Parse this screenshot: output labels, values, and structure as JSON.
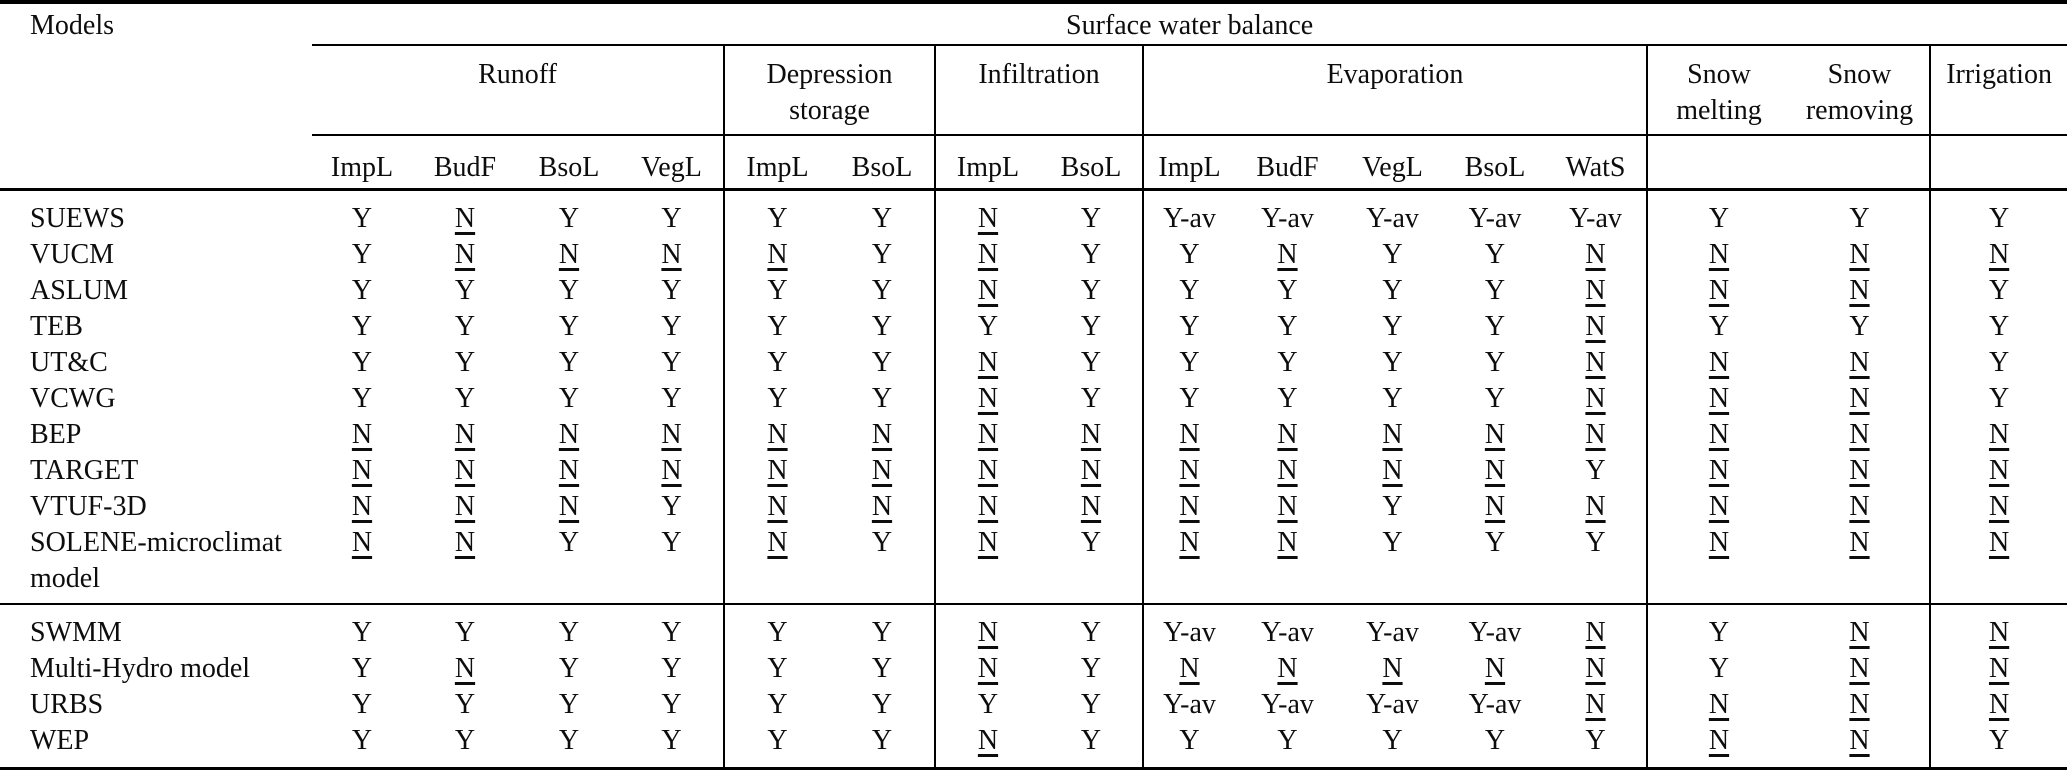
{
  "table": {
    "corner_label": "Models",
    "title": "Surface water balance",
    "groups": [
      {
        "label": "Runoff",
        "columns": [
          "ImpL",
          "BudF",
          "BsoL",
          "VegL"
        ]
      },
      {
        "label": "Depression storage",
        "columns": [
          "ImpL",
          "BsoL"
        ]
      },
      {
        "label": "Infiltration",
        "columns": [
          "ImpL",
          "BsoL"
        ]
      },
      {
        "label": "Evaporation",
        "columns": [
          "ImpL",
          "BudF",
          "VegL",
          "BsoL",
          "WatS"
        ]
      },
      {
        "label": "Snow melting",
        "columns": []
      },
      {
        "label": "Snow removing",
        "columns": []
      },
      {
        "label": "Irrigation",
        "columns": []
      }
    ],
    "sections": [
      {
        "rows": [
          {
            "model": "SUEWS",
            "values": [
              "Y",
              "N",
              "Y",
              "Y",
              "Y",
              "Y",
              "N",
              "Y",
              "Y-av",
              "Y-av",
              "Y-av",
              "Y-av",
              "Y-av",
              "Y",
              "Y",
              "Y"
            ]
          },
          {
            "model": "VUCM",
            "values": [
              "Y",
              "N",
              "N",
              "N",
              "N",
              "Y",
              "N",
              "Y",
              "Y",
              "N",
              "Y",
              "Y",
              "N",
              "N",
              "N",
              "N"
            ]
          },
          {
            "model": "ASLUM",
            "values": [
              "Y",
              "Y",
              "Y",
              "Y",
              "Y",
              "Y",
              "N",
              "Y",
              "Y",
              "Y",
              "Y",
              "Y",
              "N",
              "N",
              "N",
              "Y"
            ]
          },
          {
            "model": "TEB",
            "values": [
              "Y",
              "Y",
              "Y",
              "Y",
              "Y",
              "Y",
              "Y",
              "Y",
              "Y",
              "Y",
              "Y",
              "Y",
              "N",
              "Y",
              "Y",
              "Y"
            ]
          },
          {
            "model": "UT&C",
            "values": [
              "Y",
              "Y",
              "Y",
              "Y",
              "Y",
              "Y",
              "N",
              "Y",
              "Y",
              "Y",
              "Y",
              "Y",
              "N",
              "N",
              "N",
              "Y"
            ]
          },
          {
            "model": "VCWG",
            "values": [
              "Y",
              "Y",
              "Y",
              "Y",
              "Y",
              "Y",
              "N",
              "Y",
              "Y",
              "Y",
              "Y",
              "Y",
              "N",
              "N",
              "N",
              "Y"
            ]
          },
          {
            "model": "BEP",
            "values": [
              "N",
              "N",
              "N",
              "N",
              "N",
              "N",
              "N",
              "N",
              "N",
              "N",
              "N",
              "N",
              "N",
              "N",
              "N",
              "N"
            ]
          },
          {
            "model": "TARGET",
            "values": [
              "N",
              "N",
              "N",
              "N",
              "N",
              "N",
              "N",
              "N",
              "N",
              "N",
              "N",
              "N",
              "Y",
              "N",
              "N",
              "N"
            ]
          },
          {
            "model": "VTUF-3D",
            "values": [
              "N",
              "N",
              "N",
              "Y",
              "N",
              "N",
              "N",
              "N",
              "N",
              "N",
              "Y",
              "N",
              "N",
              "N",
              "N",
              "N"
            ]
          },
          {
            "model": "SOLENE-microclimat model",
            "values": [
              "N",
              "N",
              "Y",
              "Y",
              "N",
              "Y",
              "N",
              "Y",
              "N",
              "N",
              "Y",
              "Y",
              "Y",
              "N",
              "N",
              "N"
            ]
          }
        ]
      },
      {
        "rows": [
          {
            "model": "SWMM",
            "values": [
              "Y",
              "Y",
              "Y",
              "Y",
              "Y",
              "Y",
              "N",
              "Y",
              "Y-av",
              "Y-av",
              "Y-av",
              "Y-av",
              "N",
              "Y",
              "N",
              "N"
            ]
          },
          {
            "model": "Multi-Hydro model",
            "values": [
              "Y",
              "N",
              "Y",
              "Y",
              "Y",
              "Y",
              "N",
              "Y",
              "N",
              "N",
              "N",
              "N",
              "N",
              "Y",
              "N",
              "N"
            ]
          },
          {
            "model": "URBS",
            "values": [
              "Y",
              "Y",
              "Y",
              "Y",
              "Y",
              "Y",
              "Y",
              "Y",
              "Y-av",
              "Y-av",
              "Y-av",
              "Y-av",
              "N",
              "N",
              "N",
              "N"
            ]
          },
          {
            "model": "WEP",
            "values": [
              "Y",
              "Y",
              "Y",
              "Y",
              "Y",
              "Y",
              "N",
              "Y",
              "Y",
              "Y",
              "Y",
              "Y",
              "Y",
              "N",
              "N",
              "Y"
            ]
          }
        ]
      }
    ]
  }
}
